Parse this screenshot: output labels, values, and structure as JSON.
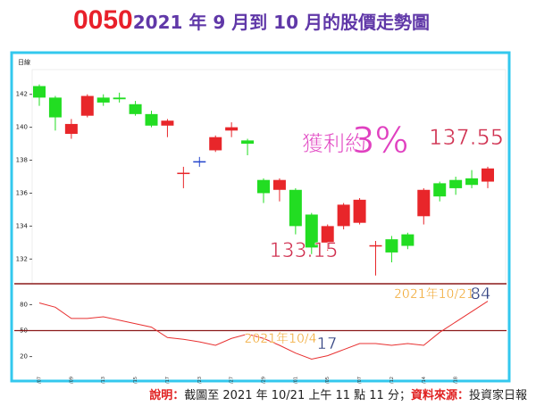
{
  "header": {
    "code": "0050",
    "title": "2021 年 9 月到 10 月的股價走勢圖"
  },
  "footer": {
    "label1": "說明：",
    "text1": "截圖至 2021 年 10/21 上午 11 點 11 分；",
    "label2": "資料來源：",
    "text2": "投資家日報"
  },
  "chart_data": [
    {
      "type": "candlestick",
      "label": "日線",
      "open": [
        142.5,
        141.8,
        139.6,
        140.7,
        141.8,
        141.8,
        141.4,
        140.8,
        140.1,
        137.2,
        137.9,
        138.6,
        139.8,
        139.2,
        136.8,
        136.2,
        136.2,
        134.7,
        133.0,
        134.0,
        134.2,
        132.8,
        133.2,
        133.5,
        134.6,
        136.6,
        136.8,
        136.9,
        136.7
      ],
      "high": [
        142.6,
        141.9,
        140.5,
        142.0,
        142.0,
        142.1,
        141.6,
        141.0,
        140.5,
        137.6,
        138.2,
        139.5,
        140.3,
        139.3,
        136.9,
        136.9,
        136.3,
        134.8,
        134.1,
        135.4,
        135.7,
        133.1,
        133.4,
        133.6,
        136.3,
        136.7,
        137.0,
        137.4,
        137.6
      ],
      "low": [
        141.3,
        139.8,
        139.3,
        140.6,
        141.3,
        141.5,
        140.7,
        140.0,
        139.4,
        136.3,
        137.6,
        138.5,
        139.4,
        138.3,
        135.4,
        135.5,
        133.5,
        132.3,
        132.5,
        133.8,
        134.1,
        131.0,
        131.8,
        132.6,
        134.1,
        135.5,
        135.9,
        136.3,
        136.3
      ],
      "close": [
        141.8,
        140.6,
        140.2,
        141.9,
        141.5,
        141.7,
        140.8,
        140.1,
        140.4,
        137.2,
        137.9,
        139.4,
        140.0,
        139.0,
        136.0,
        136.8,
        134.0,
        132.7,
        134.0,
        135.3,
        135.6,
        132.8,
        132.4,
        132.8,
        136.2,
        135.8,
        136.3,
        136.5,
        137.5
      ],
      "colors": [
        "#22dd22",
        "#22dd22",
        "#e8262a",
        "#e8262a",
        "#22dd22",
        "#22dd22",
        "#22dd22",
        "#22dd22",
        "#e8262a",
        "#e8262a",
        "#2244cc",
        "#e8262a",
        "#e8262a",
        "#22dd22",
        "#22dd22",
        "#e8262a",
        "#22dd22",
        "#22dd22",
        "#e8262a",
        "#e8262a",
        "#e8262a",
        "#e8262a",
        "#22dd22",
        "#22dd22",
        "#e8262a",
        "#22dd22",
        "#22dd22",
        "#22dd22",
        "#e8262a"
      ],
      "ylim": [
        130.5,
        143.5
      ],
      "yticks": [
        132,
        134,
        136,
        138,
        140,
        142
      ],
      "annotations": [
        {
          "text": "獲利約",
          "color": "#e040c0"
        },
        {
          "text": "3%",
          "color": "#e040c0"
        },
        {
          "text": "137.55",
          "color": "#d03050"
        },
        {
          "text": "133.15",
          "color": "#d03050"
        }
      ]
    },
    {
      "type": "line",
      "categories": [
        "2021/09/07",
        null,
        "2021/09/09",
        null,
        "2021/09/13",
        null,
        "2021/09/15",
        null,
        "2021/09/17",
        null,
        "2021/09/23",
        null,
        "2021/09/27",
        null,
        "2021/09/29",
        null,
        "2021/10/01",
        null,
        "2021/10/05",
        null,
        "2021/10/07",
        null,
        "2021/10/12",
        null,
        "2021/10/14",
        null,
        "2021/10/18",
        null,
        null
      ],
      "values": [
        82,
        77,
        64,
        64,
        66,
        62,
        58,
        54,
        42,
        40,
        37,
        33,
        41,
        46,
        41,
        33,
        24,
        17,
        21,
        28,
        35,
        35,
        33,
        35,
        33,
        48,
        60,
        72,
        84
      ],
      "color": "#e83030",
      "ylim": [
        0,
        100
      ],
      "yticks": [
        20,
        50,
        80
      ],
      "refline": 50,
      "annotations": [
        {
          "text": "2021年10/21",
          "color": "#f0a020"
        },
        {
          "text": "84",
          "color": "#304080"
        },
        {
          "text": "2021年10/4",
          "color": "#f0a020"
        },
        {
          "text": "17",
          "color": "#304080"
        }
      ]
    }
  ]
}
